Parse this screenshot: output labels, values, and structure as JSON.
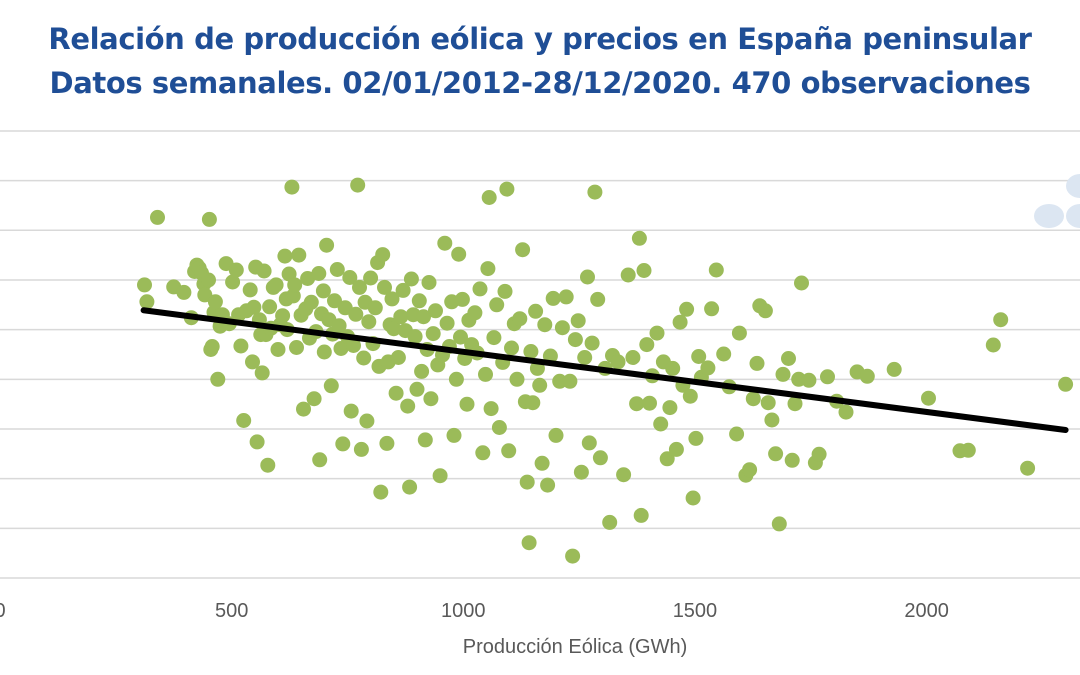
{
  "chart_data": {
    "type": "scatter",
    "title": "Relación de producción eólica y precios en España peninsular",
    "subtitle": "Datos semanales. 02/01/2012-28/12/2020. 470 observaciones",
    "xlabel": "Producción Eólica (GWh)",
    "ylabel": "",
    "xlim": [
      0,
      2330
    ],
    "ylim": [
      0,
      9
    ],
    "y_units_note": "y axis tick labels not visible; values in gridline units",
    "x_ticks": [
      "0",
      "500",
      "1000",
      "1500",
      "2000"
    ],
    "x_tick_values": [
      0,
      500,
      1000,
      1500,
      2000
    ],
    "y_gridlines": [
      0,
      1,
      2,
      3,
      4,
      5,
      6,
      7,
      8,
      9
    ],
    "grid": true,
    "legend": "none",
    "colors": {
      "points": "#9bbb59",
      "trend": "#000000",
      "grid": "#d9d9d9",
      "title": "#1f4e96",
      "watermark": "#dce6f2"
    },
    "trendline": {
      "x": [
        310,
        2300
      ],
      "y": [
        5.39,
        2.98
      ]
    },
    "series": [
      {
        "name": "Semanas",
        "points": [
          [
            312,
            5.9
          ],
          [
            317,
            5.56
          ],
          [
            340,
            7.26
          ],
          [
            375,
            5.86
          ],
          [
            397,
            5.75
          ],
          [
            413,
            5.24
          ],
          [
            420,
            6.17
          ],
          [
            425,
            6.3
          ],
          [
            430,
            6.24
          ],
          [
            435,
            6.14
          ],
          [
            440,
            5.92
          ],
          [
            442,
            5.7
          ],
          [
            450,
            6.0
          ],
          [
            452,
            7.22
          ],
          [
            455,
            4.6
          ],
          [
            458,
            4.66
          ],
          [
            462,
            5.35
          ],
          [
            465,
            5.56
          ],
          [
            470,
            4.0
          ],
          [
            475,
            5.07
          ],
          [
            480,
            5.3
          ],
          [
            488,
            6.33
          ],
          [
            495,
            5.12
          ],
          [
            502,
            5.96
          ],
          [
            510,
            6.2
          ],
          [
            515,
            5.3
          ],
          [
            520,
            4.67
          ],
          [
            526,
            3.17
          ],
          [
            532,
            5.38
          ],
          [
            540,
            5.8
          ],
          [
            545,
            4.35
          ],
          [
            548,
            5.45
          ],
          [
            552,
            6.26
          ],
          [
            555,
            2.74
          ],
          [
            560,
            5.2
          ],
          [
            563,
            4.9
          ],
          [
            566,
            4.13
          ],
          [
            570,
            6.18
          ],
          [
            574,
            4.9
          ],
          [
            578,
            2.27
          ],
          [
            582,
            5.46
          ],
          [
            585,
            5.03
          ],
          [
            590,
            5.85
          ],
          [
            596,
            5.9
          ],
          [
            600,
            4.6
          ],
          [
            605,
            5.1
          ],
          [
            610,
            5.28
          ],
          [
            615,
            6.48
          ],
          [
            618,
            5.62
          ],
          [
            620,
            5.0
          ],
          [
            624,
            6.12
          ],
          [
            630,
            7.87
          ],
          [
            633,
            5.68
          ],
          [
            636,
            5.9
          ],
          [
            640,
            4.64
          ],
          [
            645,
            6.5
          ],
          [
            650,
            5.29
          ],
          [
            655,
            3.4
          ],
          [
            660,
            5.42
          ],
          [
            664,
            6.03
          ],
          [
            668,
            4.83
          ],
          [
            672,
            5.55
          ],
          [
            678,
            3.61
          ],
          [
            682,
            4.96
          ],
          [
            688,
            6.13
          ],
          [
            690,
            2.38
          ],
          [
            694,
            5.32
          ],
          [
            698,
            5.78
          ],
          [
            700,
            4.55
          ],
          [
            705,
            6.7
          ],
          [
            710,
            5.2
          ],
          [
            715,
            3.87
          ],
          [
            718,
            4.91
          ],
          [
            722,
            5.58
          ],
          [
            728,
            6.21
          ],
          [
            732,
            5.08
          ],
          [
            736,
            4.62
          ],
          [
            740,
            2.7
          ],
          [
            745,
            5.44
          ],
          [
            750,
            4.86
          ],
          [
            755,
            6.05
          ],
          [
            758,
            3.36
          ],
          [
            763,
            4.68
          ],
          [
            768,
            5.31
          ],
          [
            772,
            7.91
          ],
          [
            776,
            5.85
          ],
          [
            780,
            2.59
          ],
          [
            785,
            4.43
          ],
          [
            788,
            5.55
          ],
          [
            792,
            3.16
          ],
          [
            796,
            5.16
          ],
          [
            800,
            6.04
          ],
          [
            805,
            4.72
          ],
          [
            810,
            5.44
          ],
          [
            815,
            6.35
          ],
          [
            818,
            4.26
          ],
          [
            822,
            1.73
          ],
          [
            826,
            6.51
          ],
          [
            830,
            5.85
          ],
          [
            835,
            2.71
          ],
          [
            838,
            4.35
          ],
          [
            842,
            5.1
          ],
          [
            846,
            5.62
          ],
          [
            850,
            5.02
          ],
          [
            855,
            3.72
          ],
          [
            860,
            4.44
          ],
          [
            865,
            5.26
          ],
          [
            870,
            5.79
          ],
          [
            875,
            4.98
          ],
          [
            880,
            3.46
          ],
          [
            884,
            1.83
          ],
          [
            888,
            6.02
          ],
          [
            892,
            5.3
          ],
          [
            896,
            4.86
          ],
          [
            900,
            3.8
          ],
          [
            905,
            5.58
          ],
          [
            910,
            4.16
          ],
          [
            914,
            5.26
          ],
          [
            918,
            2.78
          ],
          [
            922,
            4.6
          ],
          [
            926,
            5.95
          ],
          [
            930,
            3.61
          ],
          [
            935,
            4.92
          ],
          [
            940,
            5.38
          ],
          [
            945,
            4.29
          ],
          [
            950,
            2.06
          ],
          [
            955,
            4.49
          ],
          [
            960,
            6.74
          ],
          [
            965,
            5.13
          ],
          [
            970,
            4.66
          ],
          [
            975,
            5.56
          ],
          [
            980,
            2.87
          ],
          [
            985,
            4.0
          ],
          [
            990,
            6.52
          ],
          [
            994,
            4.85
          ],
          [
            998,
            5.61
          ],
          [
            1003,
            4.42
          ],
          [
            1008,
            3.5
          ],
          [
            1012,
            5.19
          ],
          [
            1018,
            4.7
          ],
          [
            1025,
            5.34
          ],
          [
            1030,
            4.53
          ],
          [
            1036,
            5.82
          ],
          [
            1042,
            2.52
          ],
          [
            1048,
            4.1
          ],
          [
            1053,
            6.23
          ],
          [
            1056,
            7.66
          ],
          [
            1060,
            3.41
          ],
          [
            1066,
            4.84
          ],
          [
            1072,
            5.5
          ],
          [
            1078,
            3.03
          ],
          [
            1085,
            4.34
          ],
          [
            1090,
            5.77
          ],
          [
            1094,
            7.83
          ],
          [
            1098,
            2.56
          ],
          [
            1104,
            4.63
          ],
          [
            1110,
            5.12
          ],
          [
            1116,
            4.0
          ],
          [
            1122,
            5.22
          ],
          [
            1128,
            6.61
          ],
          [
            1134,
            3.55
          ],
          [
            1138,
            1.93
          ],
          [
            1142,
            0.71
          ],
          [
            1146,
            4.56
          ],
          [
            1150,
            3.53
          ],
          [
            1156,
            5.37
          ],
          [
            1160,
            4.22
          ],
          [
            1165,
            3.88
          ],
          [
            1170,
            2.31
          ],
          [
            1176,
            5.1
          ],
          [
            1182,
            1.87
          ],
          [
            1188,
            4.47
          ],
          [
            1194,
            5.63
          ],
          [
            1200,
            2.87
          ],
          [
            1208,
            3.96
          ],
          [
            1214,
            5.04
          ],
          [
            1222,
            5.66
          ],
          [
            1230,
            3.96
          ],
          [
            1236,
            0.44
          ],
          [
            1242,
            4.8
          ],
          [
            1248,
            5.18
          ],
          [
            1255,
            2.13
          ],
          [
            1262,
            4.44
          ],
          [
            1268,
            6.06
          ],
          [
            1272,
            2.72
          ],
          [
            1278,
            4.73
          ],
          [
            1284,
            7.77
          ],
          [
            1290,
            5.61
          ],
          [
            1296,
            2.42
          ],
          [
            1306,
            4.22
          ],
          [
            1316,
            1.12
          ],
          [
            1322,
            4.48
          ],
          [
            1334,
            4.35
          ],
          [
            1346,
            2.08
          ],
          [
            1356,
            6.1
          ],
          [
            1366,
            4.44
          ],
          [
            1374,
            3.51
          ],
          [
            1380,
            6.84
          ],
          [
            1384,
            1.26
          ],
          [
            1390,
            6.19
          ],
          [
            1396,
            4.7
          ],
          [
            1402,
            3.52
          ],
          [
            1408,
            4.07
          ],
          [
            1418,
            4.93
          ],
          [
            1426,
            3.1
          ],
          [
            1432,
            4.35
          ],
          [
            1440,
            2.4
          ],
          [
            1446,
            3.43
          ],
          [
            1452,
            4.22
          ],
          [
            1460,
            2.59
          ],
          [
            1468,
            5.15
          ],
          [
            1474,
            3.88
          ],
          [
            1482,
            5.41
          ],
          [
            1490,
            3.66
          ],
          [
            1496,
            1.61
          ],
          [
            1502,
            2.81
          ],
          [
            1508,
            4.46
          ],
          [
            1514,
            4.04
          ],
          [
            1528,
            4.23
          ],
          [
            1536,
            5.42
          ],
          [
            1546,
            6.2
          ],
          [
            1562,
            4.51
          ],
          [
            1574,
            3.85
          ],
          [
            1590,
            2.9
          ],
          [
            1596,
            4.93
          ],
          [
            1610,
            2.07
          ],
          [
            1618,
            2.18
          ],
          [
            1626,
            3.61
          ],
          [
            1634,
            4.32
          ],
          [
            1640,
            5.48
          ],
          [
            1652,
            5.38
          ],
          [
            1658,
            3.53
          ],
          [
            1666,
            3.18
          ],
          [
            1674,
            2.5
          ],
          [
            1682,
            1.09
          ],
          [
            1690,
            4.1
          ],
          [
            1702,
            4.42
          ],
          [
            1710,
            2.37
          ],
          [
            1716,
            3.51
          ],
          [
            1724,
            4.0
          ],
          [
            1730,
            5.94
          ],
          [
            1746,
            3.98
          ],
          [
            1760,
            2.32
          ],
          [
            1768,
            2.49
          ],
          [
            1786,
            4.05
          ],
          [
            1806,
            3.56
          ],
          [
            1826,
            3.34
          ],
          [
            1850,
            4.15
          ],
          [
            1872,
            4.06
          ],
          [
            1930,
            4.2
          ],
          [
            2004,
            3.62
          ],
          [
            2072,
            2.56
          ],
          [
            2090,
            2.57
          ],
          [
            2144,
            4.69
          ],
          [
            2160,
            5.2
          ],
          [
            2218,
            2.21
          ],
          [
            2300,
            3.9
          ]
        ]
      }
    ],
    "watermark": "partial logo at right edge"
  }
}
